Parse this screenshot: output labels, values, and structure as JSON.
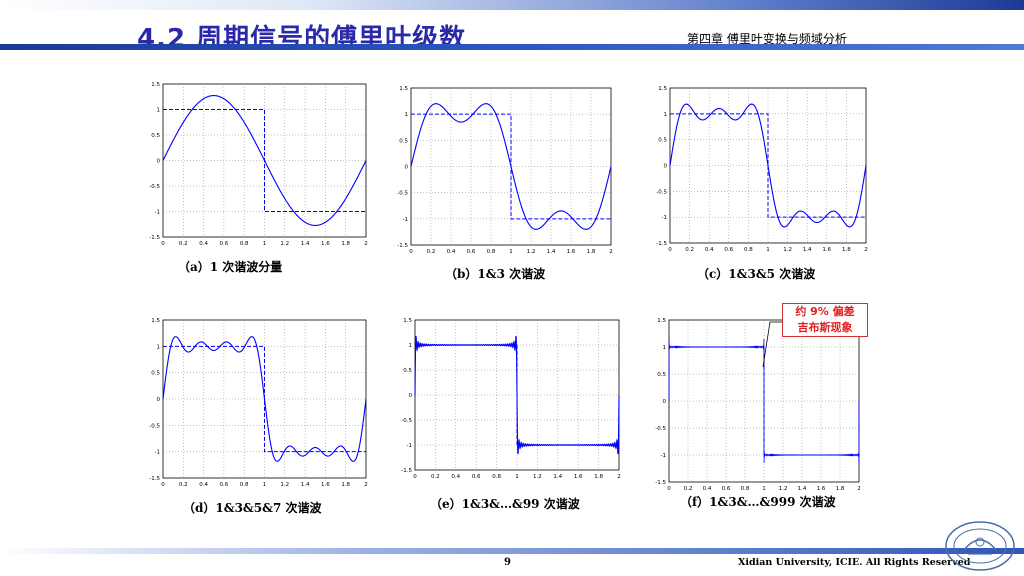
{
  "header": {
    "title": "4.2 周期信号的傅里叶级数",
    "chapter": "第四章 傅里叶变换与频域分析"
  },
  "footer": {
    "page_number": "9",
    "copyright": "Xidian University, ICIE. All Rights Reserved"
  },
  "callout": {
    "line1": "约 9% 偏差",
    "line2": "吉布斯现象"
  },
  "colors": {
    "accent": "#2a2aa8",
    "curve": "#0000ff",
    "callout_text": "#e02020"
  },
  "chart_data": [
    {
      "type": "line",
      "caption": "（a）1 次谐波分量",
      "harmonics": [
        1
      ],
      "series": [
        {
          "values": "square-wave partial sum, harmonics 1"
        }
      ],
      "xlim": [
        0,
        2
      ],
      "ylim": [
        -1.5,
        1.5
      ],
      "xticks": [
        "0",
        "0.2",
        "0.4",
        "0.6",
        "0.8",
        "1",
        "1.2",
        "1.4",
        "1.6",
        "1.8",
        "2"
      ],
      "yticks": [
        "1.5",
        "1",
        "0.5",
        "0",
        "-0.5",
        "-1",
        "-1.5"
      ],
      "grid": true
    },
    {
      "type": "line",
      "caption": "（b）1&3 次谐波",
      "harmonics": [
        1,
        3
      ],
      "series": [
        {
          "values": "square-wave partial sum, harmonics 1,3"
        }
      ],
      "xlim": [
        0,
        2
      ],
      "ylim": [
        -1.5,
        1.5
      ],
      "xticks": [
        "0",
        "0.2",
        "0.4",
        "0.6",
        "0.8",
        "1",
        "1.2",
        "1.4",
        "1.6",
        "1.8",
        "2"
      ],
      "yticks": [
        "1.5",
        "1",
        "0.5",
        "0",
        "-0.5",
        "-1",
        "-1.5"
      ],
      "grid": true
    },
    {
      "type": "line",
      "caption": "（c）1&3&5 次谐波",
      "harmonics": [
        1,
        3,
        5
      ],
      "series": [
        {
          "values": "square-wave partial sum, harmonics 1,3,5"
        }
      ],
      "xlim": [
        0,
        2
      ],
      "ylim": [
        -1.5,
        1.5
      ],
      "xticks": [
        "0",
        "0.2",
        "0.4",
        "0.6",
        "0.8",
        "1",
        "1.2",
        "1.4",
        "1.6",
        "1.8",
        "2"
      ],
      "yticks": [
        "1.5",
        "1",
        "0.5",
        "0",
        "-0.5",
        "-1",
        "-1.5"
      ],
      "grid": true
    },
    {
      "type": "line",
      "caption": "（d）1&3&5&7 次谐波",
      "harmonics": [
        1,
        3,
        5,
        7
      ],
      "series": [
        {
          "values": "square-wave partial sum, harmonics 1,3,5,7"
        }
      ],
      "xlim": [
        0,
        2
      ],
      "ylim": [
        -1.5,
        1.5
      ],
      "xticks": [
        "0",
        "0.2",
        "0.4",
        "0.6",
        "0.8",
        "1",
        "1.2",
        "1.4",
        "1.6",
        "1.8",
        "2"
      ],
      "yticks": [
        "1.5",
        "1",
        "0.5",
        "0",
        "-0.5",
        "-1",
        "-1.5"
      ],
      "grid": true
    },
    {
      "type": "line",
      "caption": "（e）1&3&…&99 次谐波",
      "harmonics_max": 99,
      "series": [
        {
          "values": "square-wave partial sum, odd harmonics up to 99"
        }
      ],
      "xlim": [
        0,
        2
      ],
      "ylim": [
        -1.5,
        1.5
      ],
      "xticks": [
        "0",
        "0.2",
        "0.4",
        "0.6",
        "0.8",
        "1",
        "1.2",
        "1.4",
        "1.6",
        "1.8",
        "2"
      ],
      "yticks": [
        "1.5",
        "1",
        "0.5",
        "0",
        "-0.5",
        "-1",
        "-1.5"
      ],
      "grid": true
    },
    {
      "type": "line",
      "caption": "（f）1&3&…&999 次谐波",
      "harmonics_max": 999,
      "series": [
        {
          "values": "square-wave partial sum, odd harmonics up to 999"
        }
      ],
      "xlim": [
        0,
        2
      ],
      "ylim": [
        -1.5,
        1.5
      ],
      "xticks": [
        "0",
        "0.2",
        "0.4",
        "0.6",
        "0.8",
        "1",
        "1.2",
        "1.4",
        "1.6",
        "1.8",
        "2"
      ],
      "yticks": [
        "1.5",
        "1",
        "0.5",
        "0",
        "-0.5",
        "-1",
        "-1.5"
      ],
      "grid": true
    }
  ]
}
